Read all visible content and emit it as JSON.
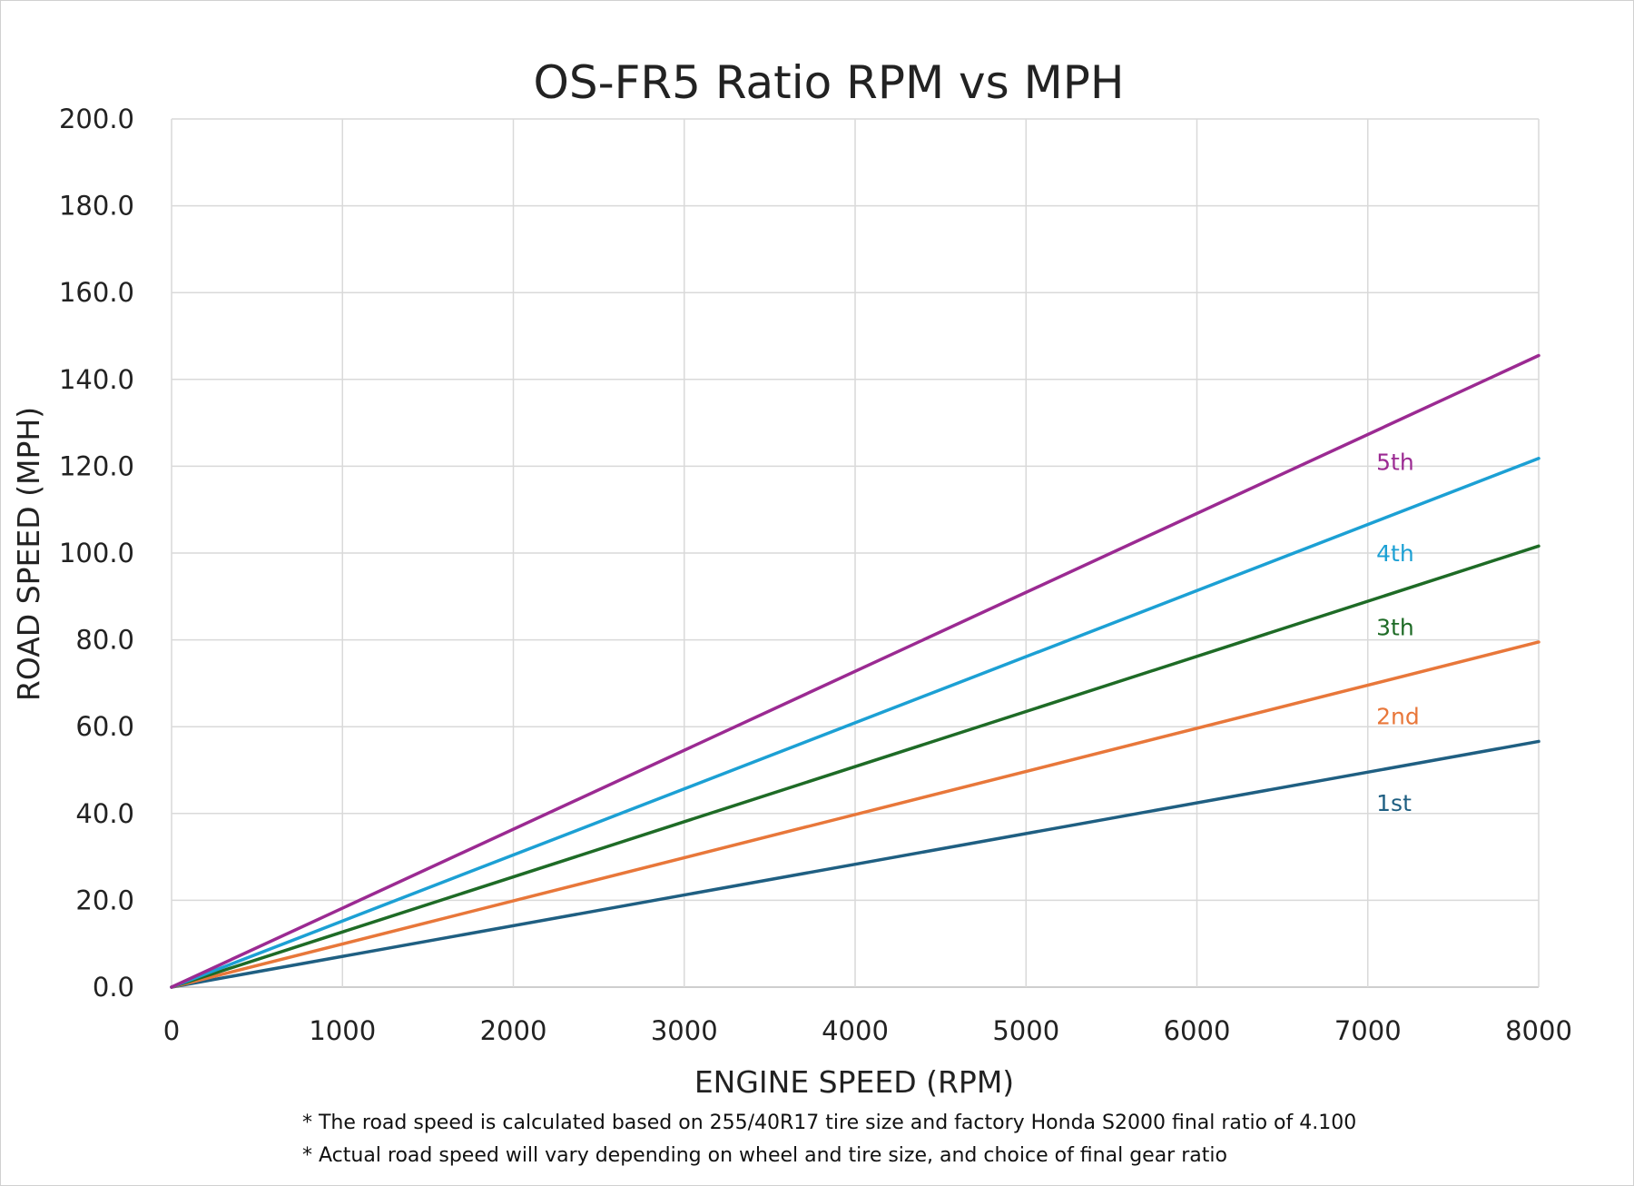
{
  "chart_data": {
    "type": "line",
    "title": "OS-FR5 Ratio RPM vs MPH",
    "xlabel": "ENGINE SPEED (RPM)",
    "ylabel": "ROAD SPEED (MPH)",
    "xlim": [
      0,
      8000
    ],
    "ylim": [
      0,
      200
    ],
    "x_ticks": [
      "0",
      "1000",
      "2000",
      "3000",
      "4000",
      "5000",
      "6000",
      "7000",
      "8000"
    ],
    "y_ticks": [
      "0.0",
      "20.0",
      "40.0",
      "60.0",
      "80.0",
      "100.0",
      "120.0",
      "140.0",
      "160.0",
      "180.0",
      "200.0"
    ],
    "grid": true,
    "legend": "inline-labels-right",
    "series": [
      {
        "name": "1st",
        "color": "#1f5f82",
        "x": [
          0,
          8000
        ],
        "y": [
          0,
          56.6
        ]
      },
      {
        "name": "2nd",
        "color": "#e8773a",
        "x": [
          0,
          8000
        ],
        "y": [
          0,
          79.5
        ]
      },
      {
        "name": "3th",
        "color": "#1e6b26",
        "x": [
          0,
          8000
        ],
        "y": [
          0,
          101.6
        ]
      },
      {
        "name": "4th",
        "color": "#1ca0d4",
        "x": [
          0,
          8000
        ],
        "y": [
          0,
          121.8
        ]
      },
      {
        "name": "5th",
        "color": "#9b2a92",
        "x": [
          0,
          8000
        ],
        "y": [
          0,
          145.5
        ]
      }
    ],
    "label_positions": [
      {
        "name": "1st",
        "x": 7050,
        "y": 42.5
      },
      {
        "name": "2nd",
        "x": 7050,
        "y": 62.5
      },
      {
        "name": "3th",
        "x": 7050,
        "y": 83.0
      },
      {
        "name": "4th",
        "x": 7050,
        "y": 100.0
      },
      {
        "name": "5th",
        "x": 7050,
        "y": 121.0
      }
    ]
  },
  "footnotes": [
    "* The road speed is calculated based on 255/40R17 tire size and factory Honda S2000 final ratio of 4.100",
    "* Actual road speed will vary depending on wheel and tire size, and choice of final gear ratio"
  ]
}
